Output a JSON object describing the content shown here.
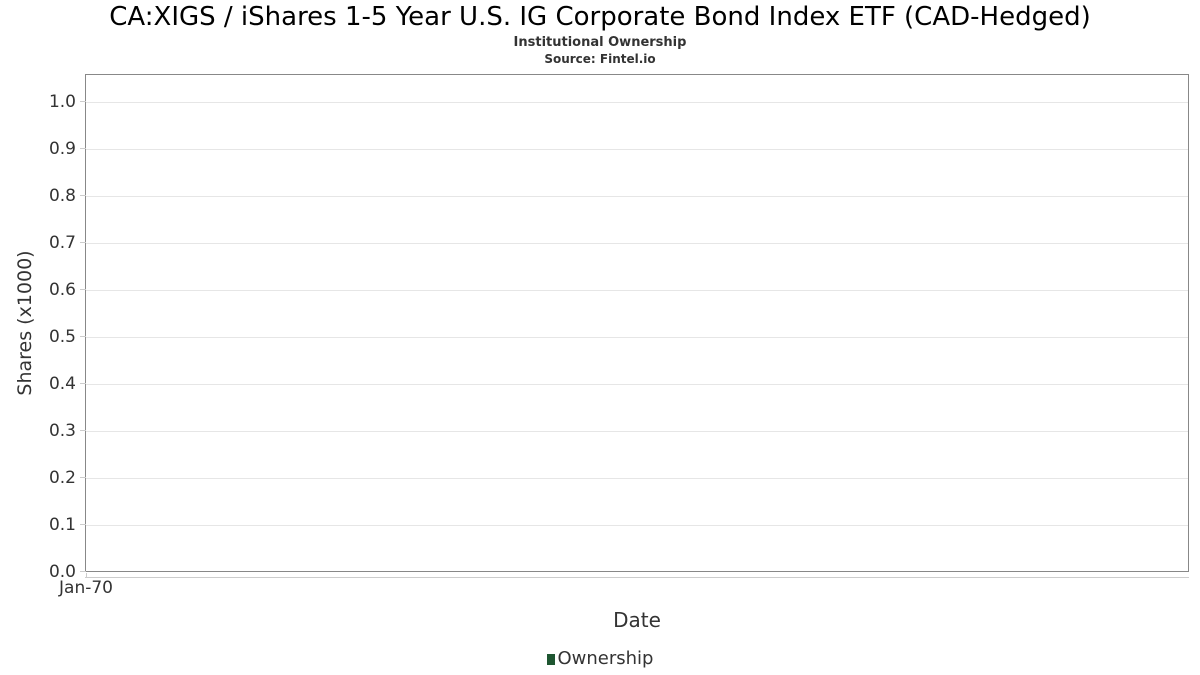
{
  "chart_data": {
    "type": "line",
    "title": "CA:XIGS / iShares 1-5 Year U.S. IG Corporate Bond Index ETF (CAD-Hedged)",
    "subtitle": "Institutional Ownership",
    "source": "Source: Fintel.io",
    "xlabel": "Date",
    "ylabel": "Shares (x1000)",
    "x_tick_labels": [
      "Jan-70"
    ],
    "y_tick_labels": [
      "0.0",
      "0.1",
      "0.2",
      "0.3",
      "0.4",
      "0.5",
      "0.6",
      "0.7",
      "0.8",
      "0.9",
      "1.0"
    ],
    "y_tick_values": [
      0,
      0.1,
      0.2,
      0.3,
      0.4,
      0.5,
      0.6,
      0.7,
      0.8,
      0.9,
      1.0
    ],
    "ylim": [
      0,
      1.06
    ],
    "grid": true,
    "legend": {
      "position": "bottom-center",
      "entries": [
        {
          "label": "Ownership",
          "color": "#1e5631"
        }
      ]
    },
    "series": [
      {
        "name": "Ownership",
        "x": [],
        "values": []
      }
    ]
  },
  "colors": {
    "background": "#ffffff",
    "plot_border": "#888888",
    "gridline": "#e6e6e6",
    "tick": "#cccccc",
    "axis_line": "#cccccc",
    "text": "#333333",
    "title": "#000000",
    "legend_marker": "#1e5631"
  }
}
